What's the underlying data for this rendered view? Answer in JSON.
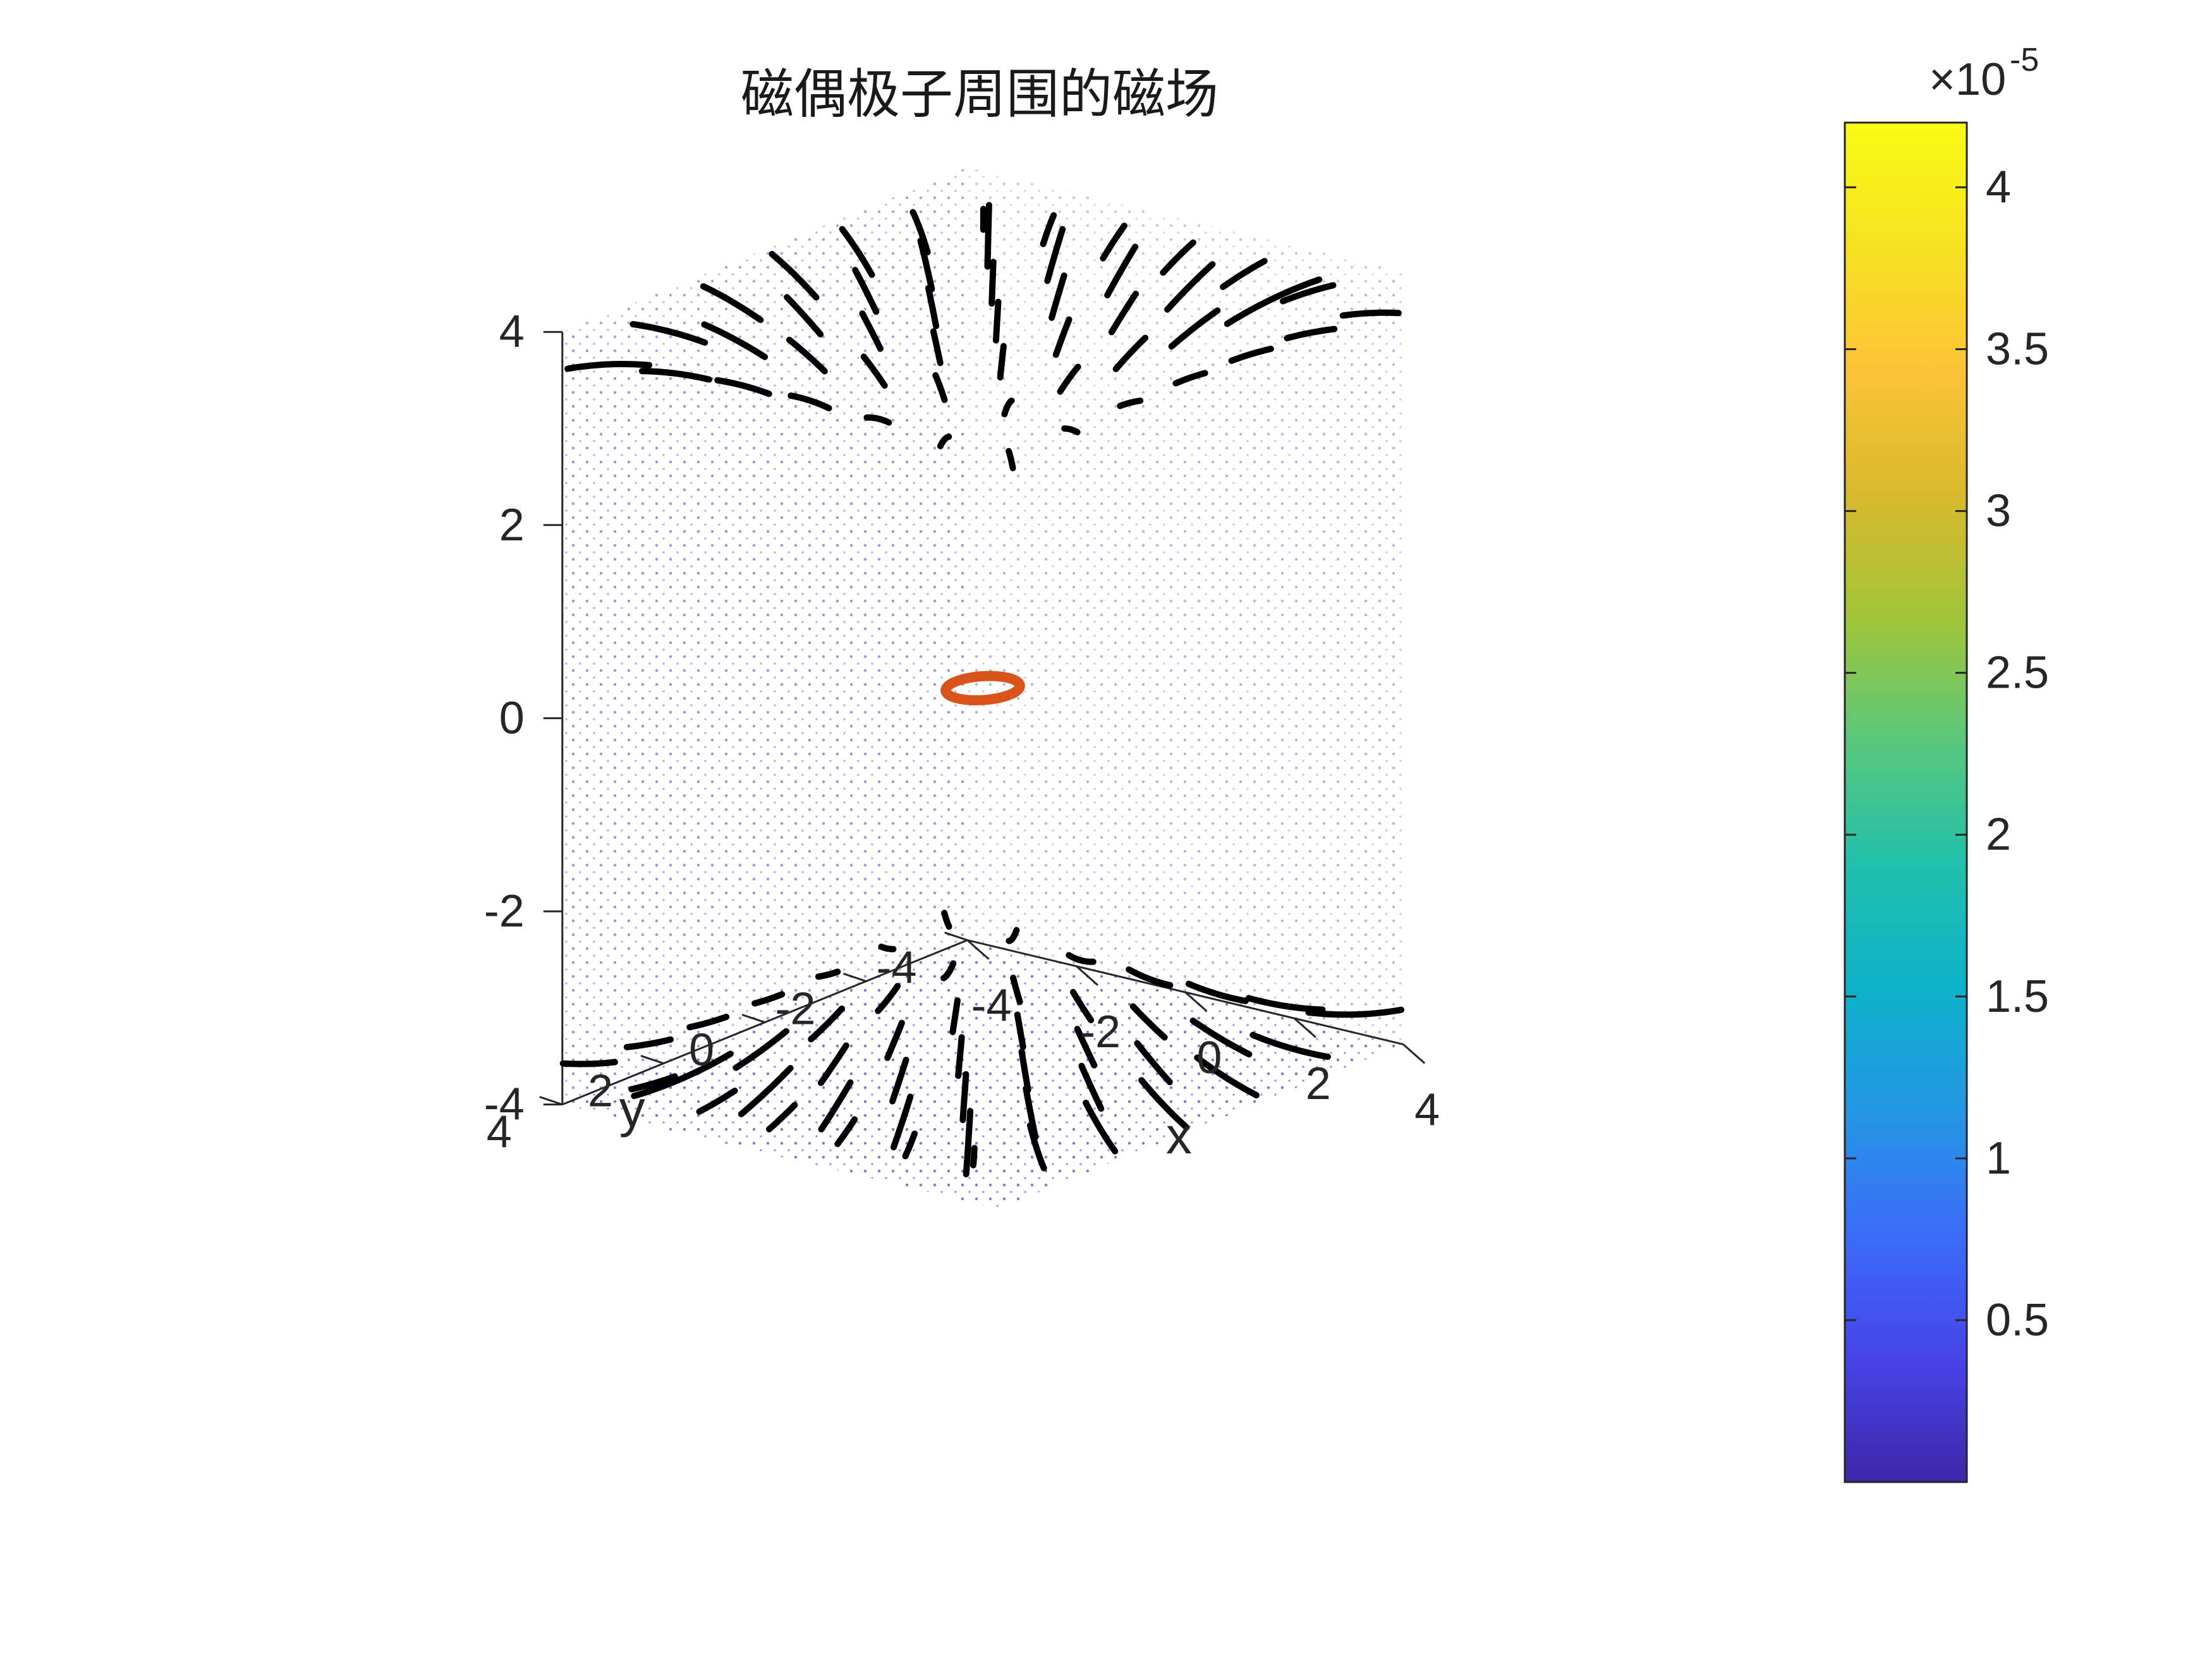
{
  "figure": {
    "title": "磁偶极子周围的磁场"
  },
  "chart_data": {
    "type": "3d-streamline",
    "title": "磁偶极子周围的磁场",
    "xlabel": "x",
    "ylabel": "y",
    "zlabel": "",
    "xlim": [
      -4,
      4
    ],
    "ylim": [
      -4,
      4
    ],
    "zlim": [
      -4,
      4
    ],
    "x_ticks": [
      "-4",
      "-2",
      "0",
      "2",
      "4"
    ],
    "y_ticks": [
      "-4",
      "-2",
      "0",
      "2",
      "4"
    ],
    "z_ticks": [
      "-4",
      "-2",
      "0",
      "2",
      "4"
    ],
    "grid": false,
    "line_color": "#000000",
    "dot_color": "#3b3dc4",
    "loop": {
      "description_value": "current loop at origin",
      "center": [
        0,
        0,
        0
      ],
      "radius": 0.5,
      "color": "#d9541a"
    },
    "colorbar": {
      "multiplier": "×10",
      "exponent": "-5",
      "min": 0,
      "max": 4.2,
      "ticks": [
        "0.5",
        "1",
        "1.5",
        "2",
        "2.5",
        "3",
        "3.5",
        "4"
      ],
      "tick_values": [
        0.5,
        1,
        1.5,
        2,
        2.5,
        3,
        3.5,
        4
      ],
      "colormap": "parula",
      "colors": [
        "#3e26a8",
        "#4744e8",
        "#3b6cf9",
        "#2497e4",
        "#0db2ca",
        "#21c0ab",
        "#5ac77c",
        "#a2c538",
        "#d9b92c",
        "#fcc438",
        "#f6e221",
        "#f9fb15"
      ]
    }
  }
}
